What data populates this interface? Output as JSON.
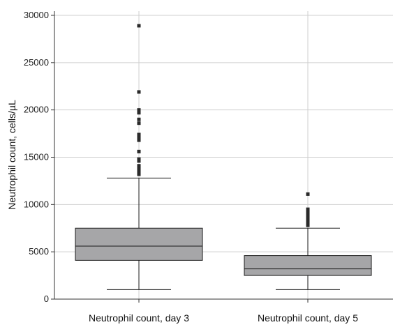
{
  "chart_data": {
    "type": "box",
    "title": "",
    "xlabel": "",
    "ylabel": "Neutrophil count, cells/µL",
    "ylim": [
      0,
      30000
    ],
    "yticks": [
      0,
      5000,
      10000,
      15000,
      20000,
      25000,
      30000
    ],
    "ytick_labels": [
      "0",
      "5000",
      "10000",
      "15000",
      "20000",
      "25000",
      "30000"
    ],
    "grid": "vertical-and-horizontal",
    "box_color": "#a6a6a8",
    "outline_color": "#1a1a1a",
    "categories": [
      "Neutrophil count, day 3",
      "Neutrophil count, day 5"
    ],
    "series": [
      {
        "whisker_low": 1000,
        "q1": 4100,
        "median": 5600,
        "q3": 7500,
        "whisker_high": 12800,
        "outliers": [
          13200,
          13300,
          13500,
          13700,
          13800,
          14100,
          14600,
          14700,
          14800,
          15600,
          16800,
          17100,
          17400,
          18600,
          19000,
          19700,
          20000,
          21900,
          28900
        ]
      },
      {
        "whisker_low": 1000,
        "q1": 2500,
        "median": 3200,
        "q3": 4600,
        "whisker_high": 7500,
        "outliers": [
          7800,
          8000,
          8200,
          8300,
          8400,
          8500,
          8600,
          8700,
          8900,
          9100,
          9300,
          9400,
          9500,
          11100
        ]
      }
    ]
  }
}
